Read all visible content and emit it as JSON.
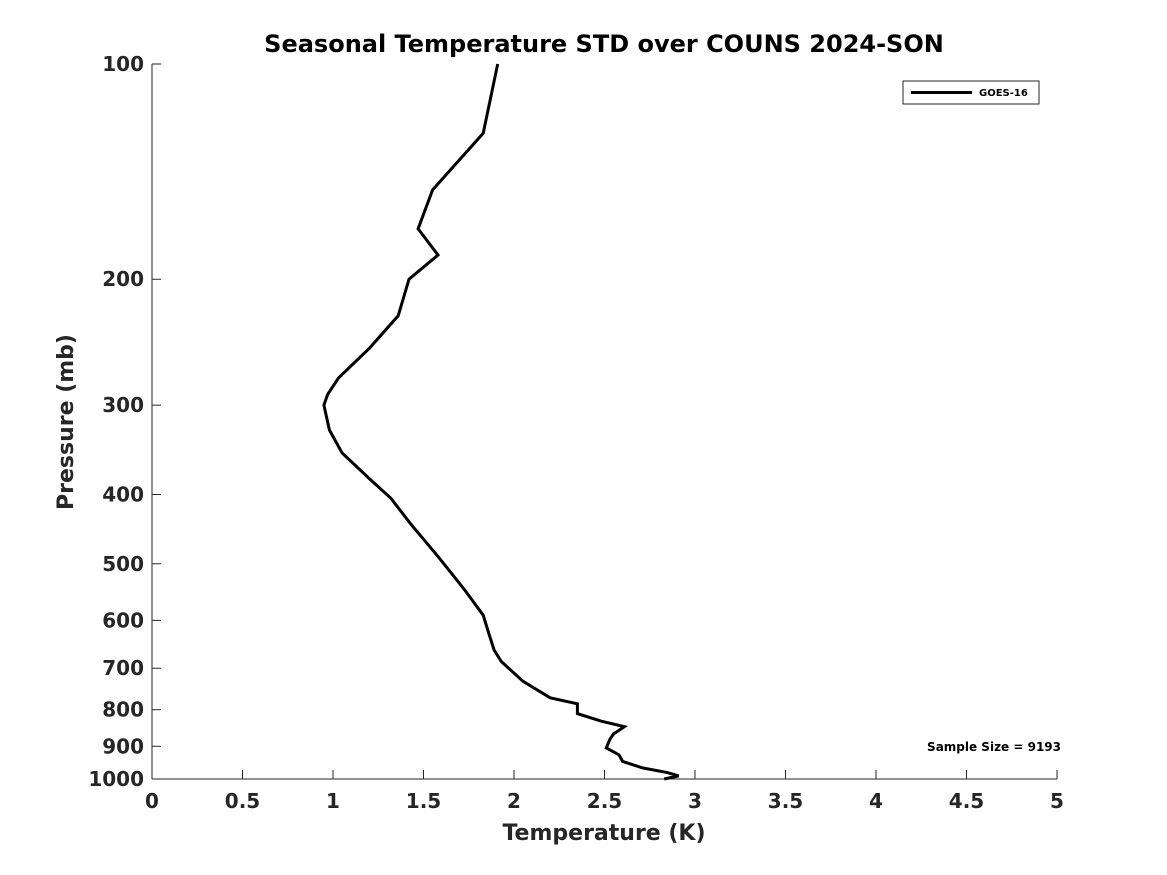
{
  "chart_data": {
    "type": "line",
    "title": "Seasonal Temperature STD over COUNS  2024-SON",
    "xlabel": "Temperature (K)",
    "ylabel": "Pressure (mb)",
    "xlim": [
      0,
      5
    ],
    "ylim": [
      100,
      1000
    ],
    "y_scale": "log",
    "y_reversed": true,
    "xticks": [
      0,
      0.5,
      1,
      1.5,
      2,
      2.5,
      3,
      3.5,
      4,
      4.5,
      5
    ],
    "xtick_labels": [
      "0",
      "0.5",
      "1",
      "1.5",
      "2",
      "2.5",
      "3",
      "3.5",
      "4",
      "4.5",
      "5"
    ],
    "yticks": [
      100,
      200,
      300,
      400,
      500,
      600,
      700,
      800,
      900,
      1000
    ],
    "ytick_labels": [
      "100",
      "200",
      "300",
      "400",
      "500",
      "600",
      "700",
      "800",
      "900",
      "1000"
    ],
    "grid": false,
    "legend_position": "top-right",
    "annotation": "Sample Size = 9193",
    "series": [
      {
        "name": "GOES-16",
        "color": "#000000",
        "points": [
          {
            "x": 1.91,
            "p": 100
          },
          {
            "x": 1.83,
            "p": 125
          },
          {
            "x": 1.55,
            "p": 150
          },
          {
            "x": 1.47,
            "p": 170
          },
          {
            "x": 1.58,
            "p": 185
          },
          {
            "x": 1.42,
            "p": 200
          },
          {
            "x": 1.36,
            "p": 225
          },
          {
            "x": 1.2,
            "p": 250
          },
          {
            "x": 1.03,
            "p": 275
          },
          {
            "x": 0.97,
            "p": 290
          },
          {
            "x": 0.95,
            "p": 300
          },
          {
            "x": 0.98,
            "p": 325
          },
          {
            "x": 1.05,
            "p": 350
          },
          {
            "x": 1.2,
            "p": 380
          },
          {
            "x": 1.32,
            "p": 405
          },
          {
            "x": 1.43,
            "p": 440
          },
          {
            "x": 1.57,
            "p": 485
          },
          {
            "x": 1.64,
            "p": 510
          },
          {
            "x": 1.73,
            "p": 545
          },
          {
            "x": 1.83,
            "p": 590
          },
          {
            "x": 1.86,
            "p": 625
          },
          {
            "x": 1.89,
            "p": 660
          },
          {
            "x": 1.93,
            "p": 685
          },
          {
            "x": 2.05,
            "p": 730
          },
          {
            "x": 2.2,
            "p": 770
          },
          {
            "x": 2.35,
            "p": 785
          },
          {
            "x": 2.35,
            "p": 810
          },
          {
            "x": 2.48,
            "p": 830
          },
          {
            "x": 2.61,
            "p": 845
          },
          {
            "x": 2.55,
            "p": 865
          },
          {
            "x": 2.53,
            "p": 880
          },
          {
            "x": 2.51,
            "p": 905
          },
          {
            "x": 2.58,
            "p": 925
          },
          {
            "x": 2.6,
            "p": 945
          },
          {
            "x": 2.71,
            "p": 965
          },
          {
            "x": 2.85,
            "p": 980
          },
          {
            "x": 2.91,
            "p": 990
          },
          {
            "x": 2.83,
            "p": 1000
          }
        ]
      }
    ]
  }
}
